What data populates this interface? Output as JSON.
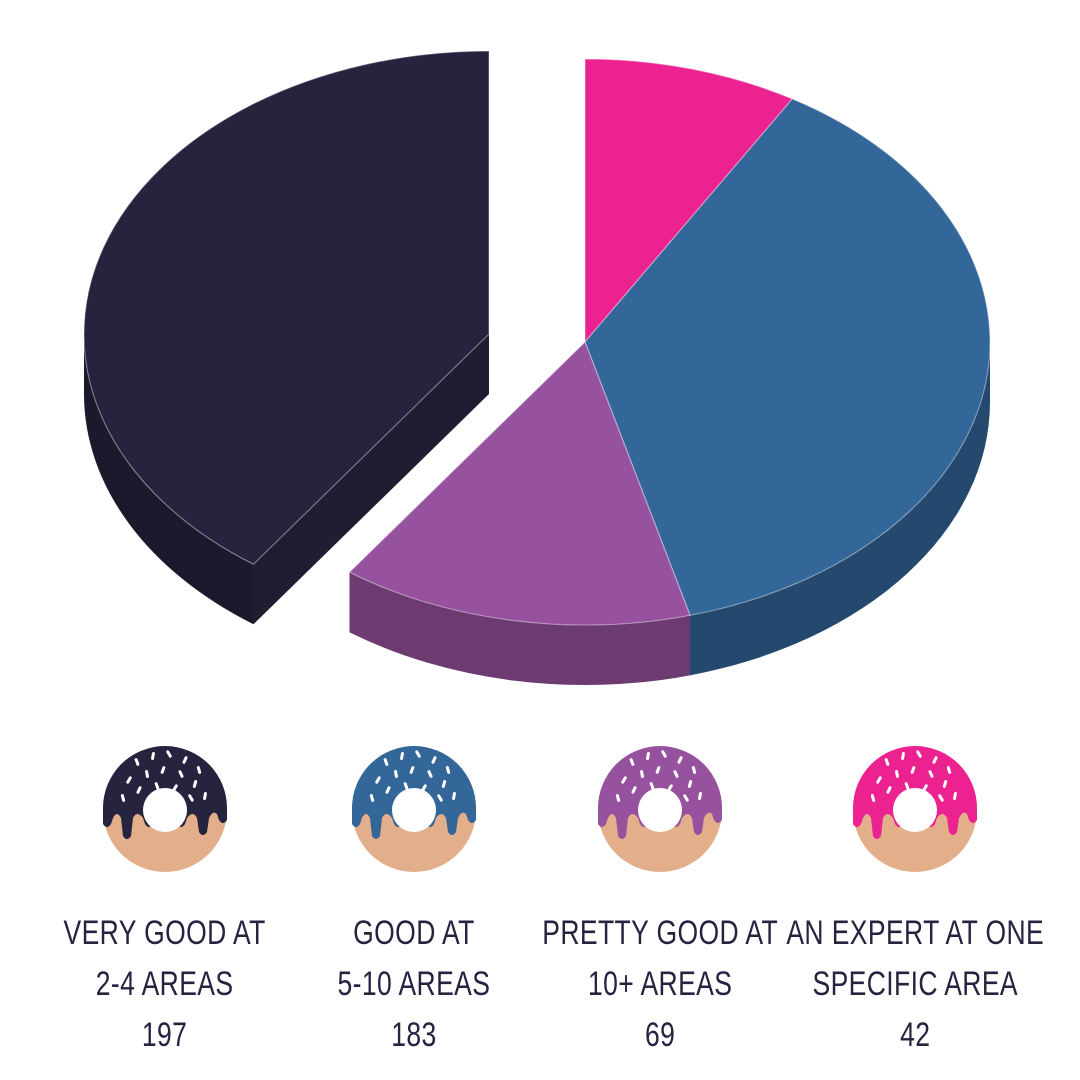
{
  "chart_data": {
    "type": "pie",
    "categories": [
      "VERY GOOD AT 2-4 AREAS",
      "GOOD AT 5-10 AREAS",
      "PRETTY GOOD AT 10+ AREAS",
      "AN EXPERT AT ONE SPECIFIC AREA"
    ],
    "values": [
      197,
      183,
      69,
      42
    ],
    "colors": [
      "#25233D",
      "#336699",
      "#97529F",
      "#EB2290"
    ],
    "exploded": [
      "VERY GOOD AT 2-4 AREAS"
    ],
    "style": "3d",
    "legend_placement": "bottom"
  },
  "legend": [
    {
      "line1": "VERY GOOD AT",
      "line2": "2-4 AREAS",
      "count": "197",
      "icon": "donut-icon",
      "color": "#25233D"
    },
    {
      "line1": "GOOD AT",
      "line2": "5-10 AREAS",
      "count": "183",
      "icon": "donut-icon",
      "color": "#336699"
    },
    {
      "line1": "PRETTY GOOD AT",
      "line2": "10+ AREAS",
      "count": "69",
      "icon": "donut-icon",
      "color": "#97529F"
    },
    {
      "line1": "AN EXPERT AT ONE",
      "line2": "SPECIFIC AREA",
      "count": "42",
      "icon": "donut-icon",
      "color": "#EB2290"
    }
  ],
  "dough_color": "#E3AE8A"
}
